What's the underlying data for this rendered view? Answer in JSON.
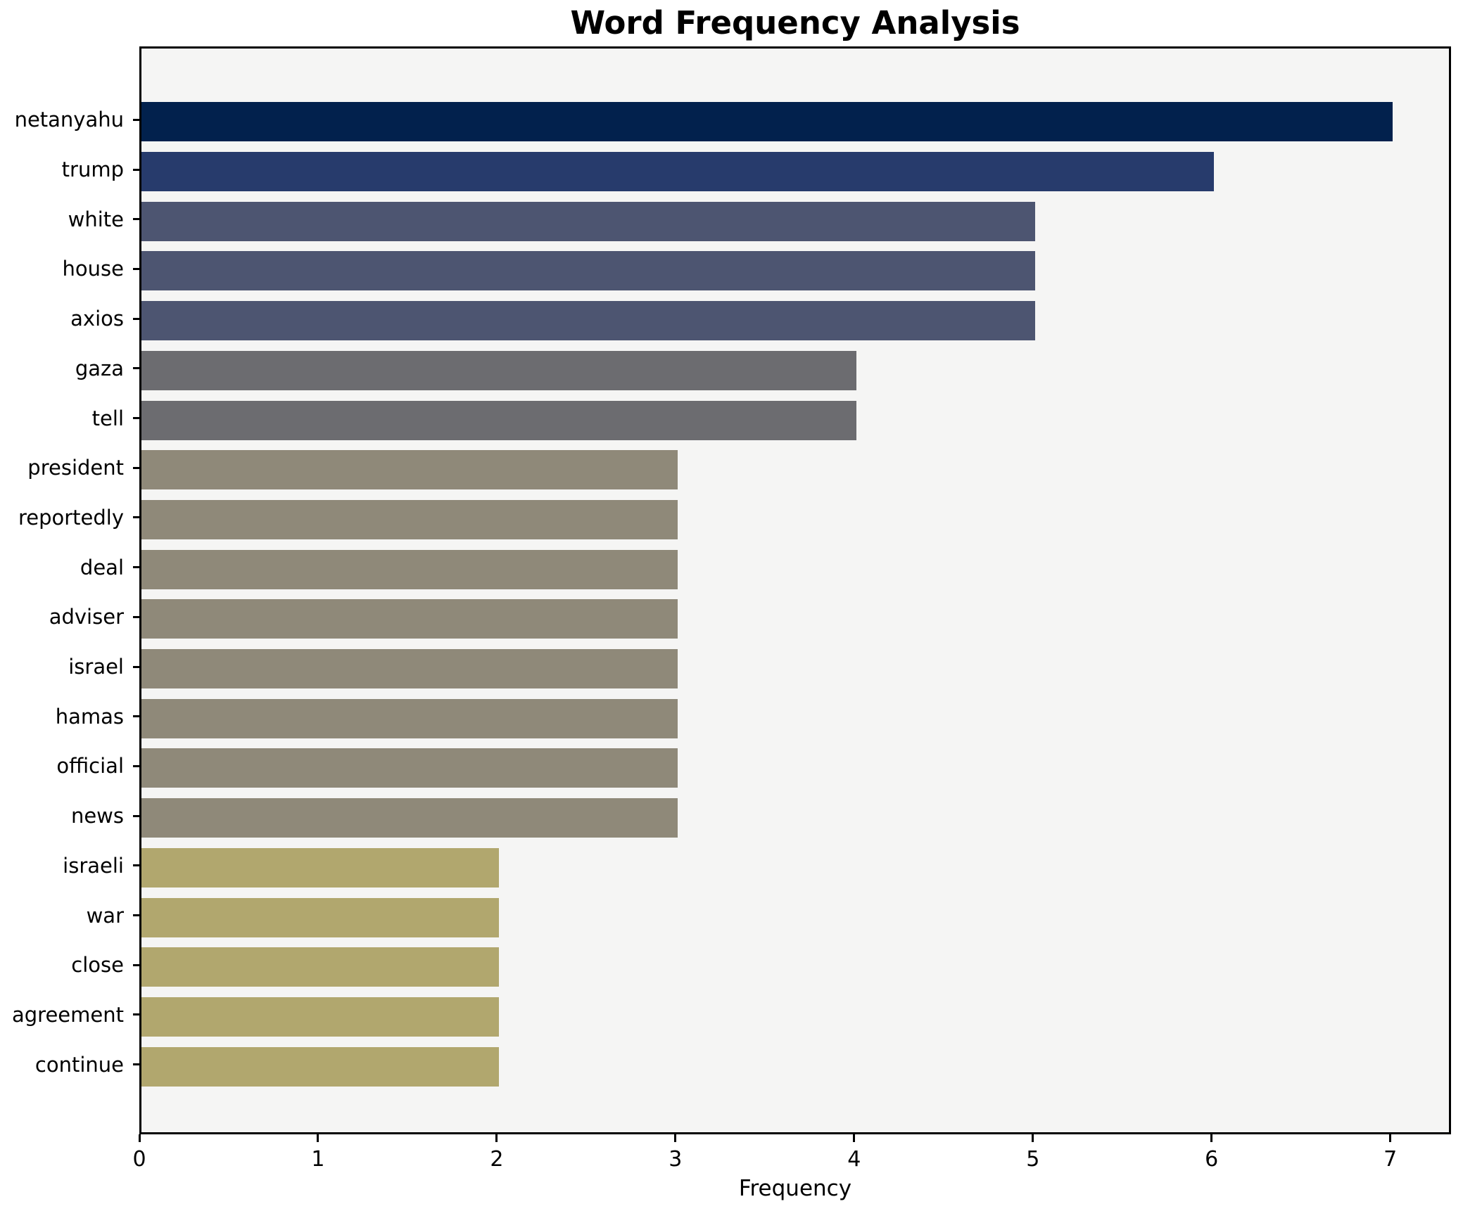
{
  "chart_data": {
    "type": "bar",
    "orientation": "horizontal",
    "title": "Word Frequency Analysis",
    "xlabel": "Frequency",
    "ylabel": "",
    "categories": [
      "netanyahu",
      "trump",
      "white",
      "house",
      "axios",
      "gaza",
      "tell",
      "president",
      "reportedly",
      "deal",
      "adviser",
      "israel",
      "hamas",
      "official",
      "news",
      "israeli",
      "war",
      "close",
      "agreement",
      "continue"
    ],
    "values": [
      7,
      6,
      5,
      5,
      5,
      4,
      4,
      3,
      3,
      3,
      3,
      3,
      3,
      3,
      3,
      2,
      2,
      2,
      2,
      2
    ],
    "xticks": [
      0,
      1,
      2,
      3,
      4,
      5,
      6,
      7
    ],
    "xlim": [
      0,
      7.34
    ],
    "grid": false,
    "legend": null,
    "colors_by_value": {
      "7": "#02214d",
      "6": "#273b6c",
      "5": "#4d5571",
      "4": "#6c6c70",
      "3": "#8f8979",
      "2": "#b1a76e"
    },
    "plot_background": "#f5f5f4",
    "figure_background": "#ffffff",
    "spine_color": "#000000",
    "text_color": "#000000"
  }
}
